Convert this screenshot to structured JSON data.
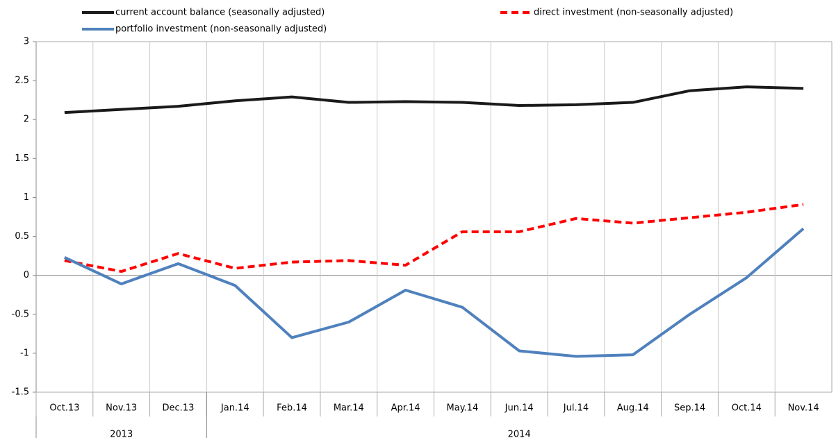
{
  "chart_data": {
    "type": "line",
    "categories": [
      "Oct.13",
      "Nov.13",
      "Dec.13",
      "Jan.14",
      "Feb.14",
      "Mar.14",
      "Apr.14",
      "May.14",
      "Jun.14",
      "Jul.14",
      "Aug.14",
      "Sep.14",
      "Oct.14",
      "Nov.14"
    ],
    "groups": [
      {
        "label": "2013",
        "count": 3
      },
      {
        "label": "2014",
        "count": 11
      }
    ],
    "series": [
      {
        "name": "current account balance (seasonally adjusted)",
        "color": "#1a1a1a",
        "dash": "solid",
        "values": [
          2.09,
          2.13,
          2.17,
          2.24,
          2.29,
          2.22,
          2.23,
          2.22,
          2.18,
          2.19,
          2.22,
          2.37,
          2.42,
          2.4
        ]
      },
      {
        "name": "direct investment (non-seasonally adjusted)",
        "color": "#ff0000",
        "dash": "dashed",
        "values": [
          0.19,
          0.05,
          0.28,
          0.09,
          0.17,
          0.19,
          0.13,
          0.56,
          0.56,
          0.73,
          0.67,
          0.74,
          0.81,
          0.91
        ]
      },
      {
        "name": "portfolio investment (non-seasonally adjusted)",
        "color": "#4f81bd",
        "dash": "solid",
        "values": [
          0.23,
          -0.11,
          0.15,
          -0.13,
          -0.8,
          -0.6,
          -0.19,
          -0.41,
          -0.97,
          -1.04,
          -1.02,
          -0.5,
          -0.03,
          0.6
        ]
      }
    ],
    "ylim": [
      -1.5,
      3
    ],
    "yticks": [
      3,
      2.5,
      2,
      1.5,
      1,
      0.5,
      0,
      -0.5,
      -1,
      -1.5
    ],
    "grid": "vertical"
  }
}
